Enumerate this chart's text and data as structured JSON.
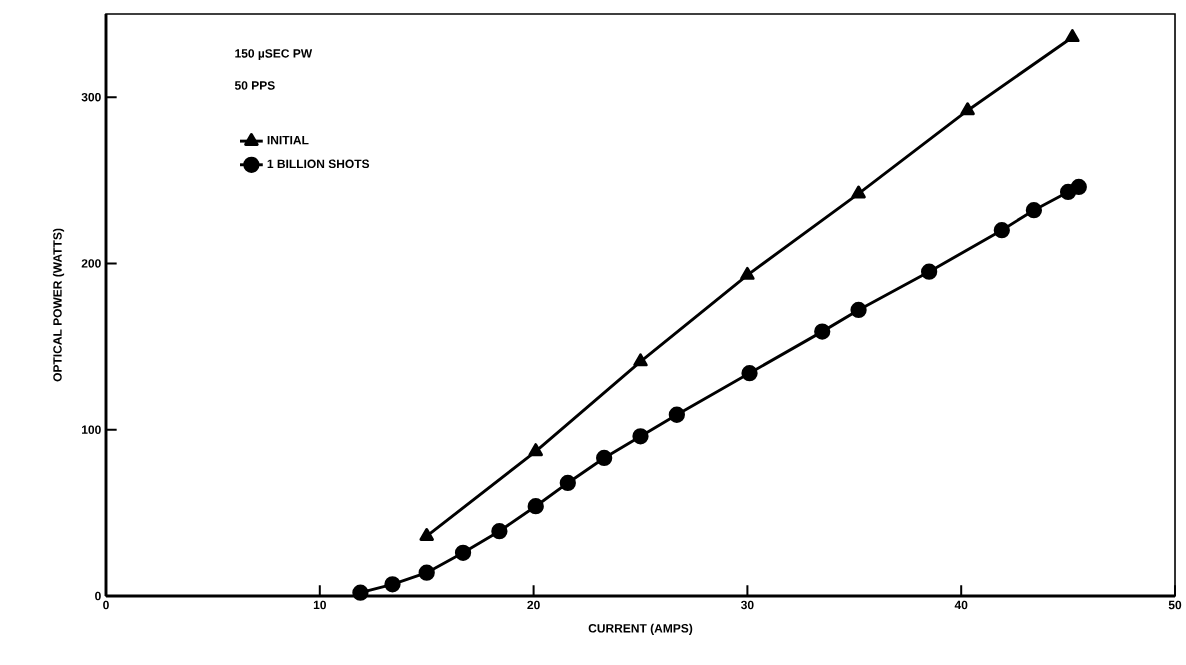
{
  "chart_data": {
    "type": "line",
    "xlabel": "CURRENT (AMPS)",
    "ylabel": "OPTICAL POWER (WATTS)",
    "annotations": [
      "150 µSEC PW",
      "50 PPS"
    ],
    "xlim": [
      0,
      50
    ],
    "xticks": [
      0,
      10,
      20,
      30,
      40,
      50
    ],
    "ylim": [
      0,
      350
    ],
    "yticks": [
      0,
      100,
      200,
      300
    ],
    "grid": false,
    "legend": "top left",
    "line_style": "solid",
    "series": [
      {
        "name": "INITIAL",
        "color": "#000000",
        "marker": "triangle",
        "x": [
          15.0,
          20.1,
          25.0,
          30.0,
          35.2,
          40.3,
          45.2
        ],
        "values": [
          36,
          87,
          141,
          193,
          242,
          292,
          336
        ]
      },
      {
        "name": "1 BILLION SHOTS",
        "color": "#000000",
        "marker": "circle",
        "x": [
          11.9,
          13.4,
          15.0,
          16.7,
          18.4,
          20.1,
          21.6,
          23.3,
          25.0,
          26.7,
          30.1,
          33.5,
          35.2,
          38.5,
          41.9,
          43.4,
          45.0,
          45.5
        ],
        "values": [
          2,
          7,
          14,
          26,
          39,
          54,
          68,
          83,
          96,
          109,
          134,
          159,
          172,
          195,
          220,
          232,
          243,
          246
        ]
      }
    ]
  }
}
